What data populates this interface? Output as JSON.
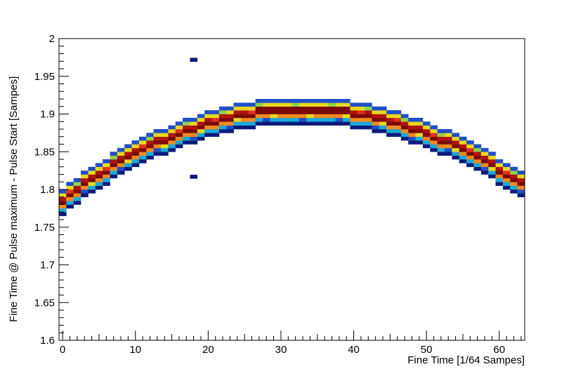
{
  "chart_data": {
    "type": "heatmap",
    "title": "",
    "xlabel": "Fine Time [1/64 Sampes]",
    "ylabel": "Fine Time @ Pulse maximum - Pulse Start [Sampes]",
    "xlim": [
      -0.5,
      63.5
    ],
    "ylim": [
      1.6,
      2.0
    ],
    "x_ticks": [
      "0",
      "10",
      "20",
      "30",
      "40",
      "50",
      "60"
    ],
    "y_ticks": [
      "1.6",
      "1.65",
      "1.7",
      "1.75",
      "1.8",
      "1.85",
      "1.9",
      "1.95",
      "2"
    ],
    "grid": false,
    "legend": "none",
    "colormap": [
      "#0b1a7a",
      "#1f4fc8",
      "#1aa8d8",
      "#3cc8a0",
      "#8ed24a",
      "#e8d820",
      "#f08a1e",
      "#e0301e",
      "#b0140e",
      "#7a0a0a"
    ],
    "bin_height": 0.005,
    "curve_model": "y = 1.902 - 0.00011*(x-33)^2",
    "outliers": [
      {
        "x": 18,
        "y": 1.972
      },
      {
        "x": 18,
        "y": 1.817
      }
    ]
  }
}
